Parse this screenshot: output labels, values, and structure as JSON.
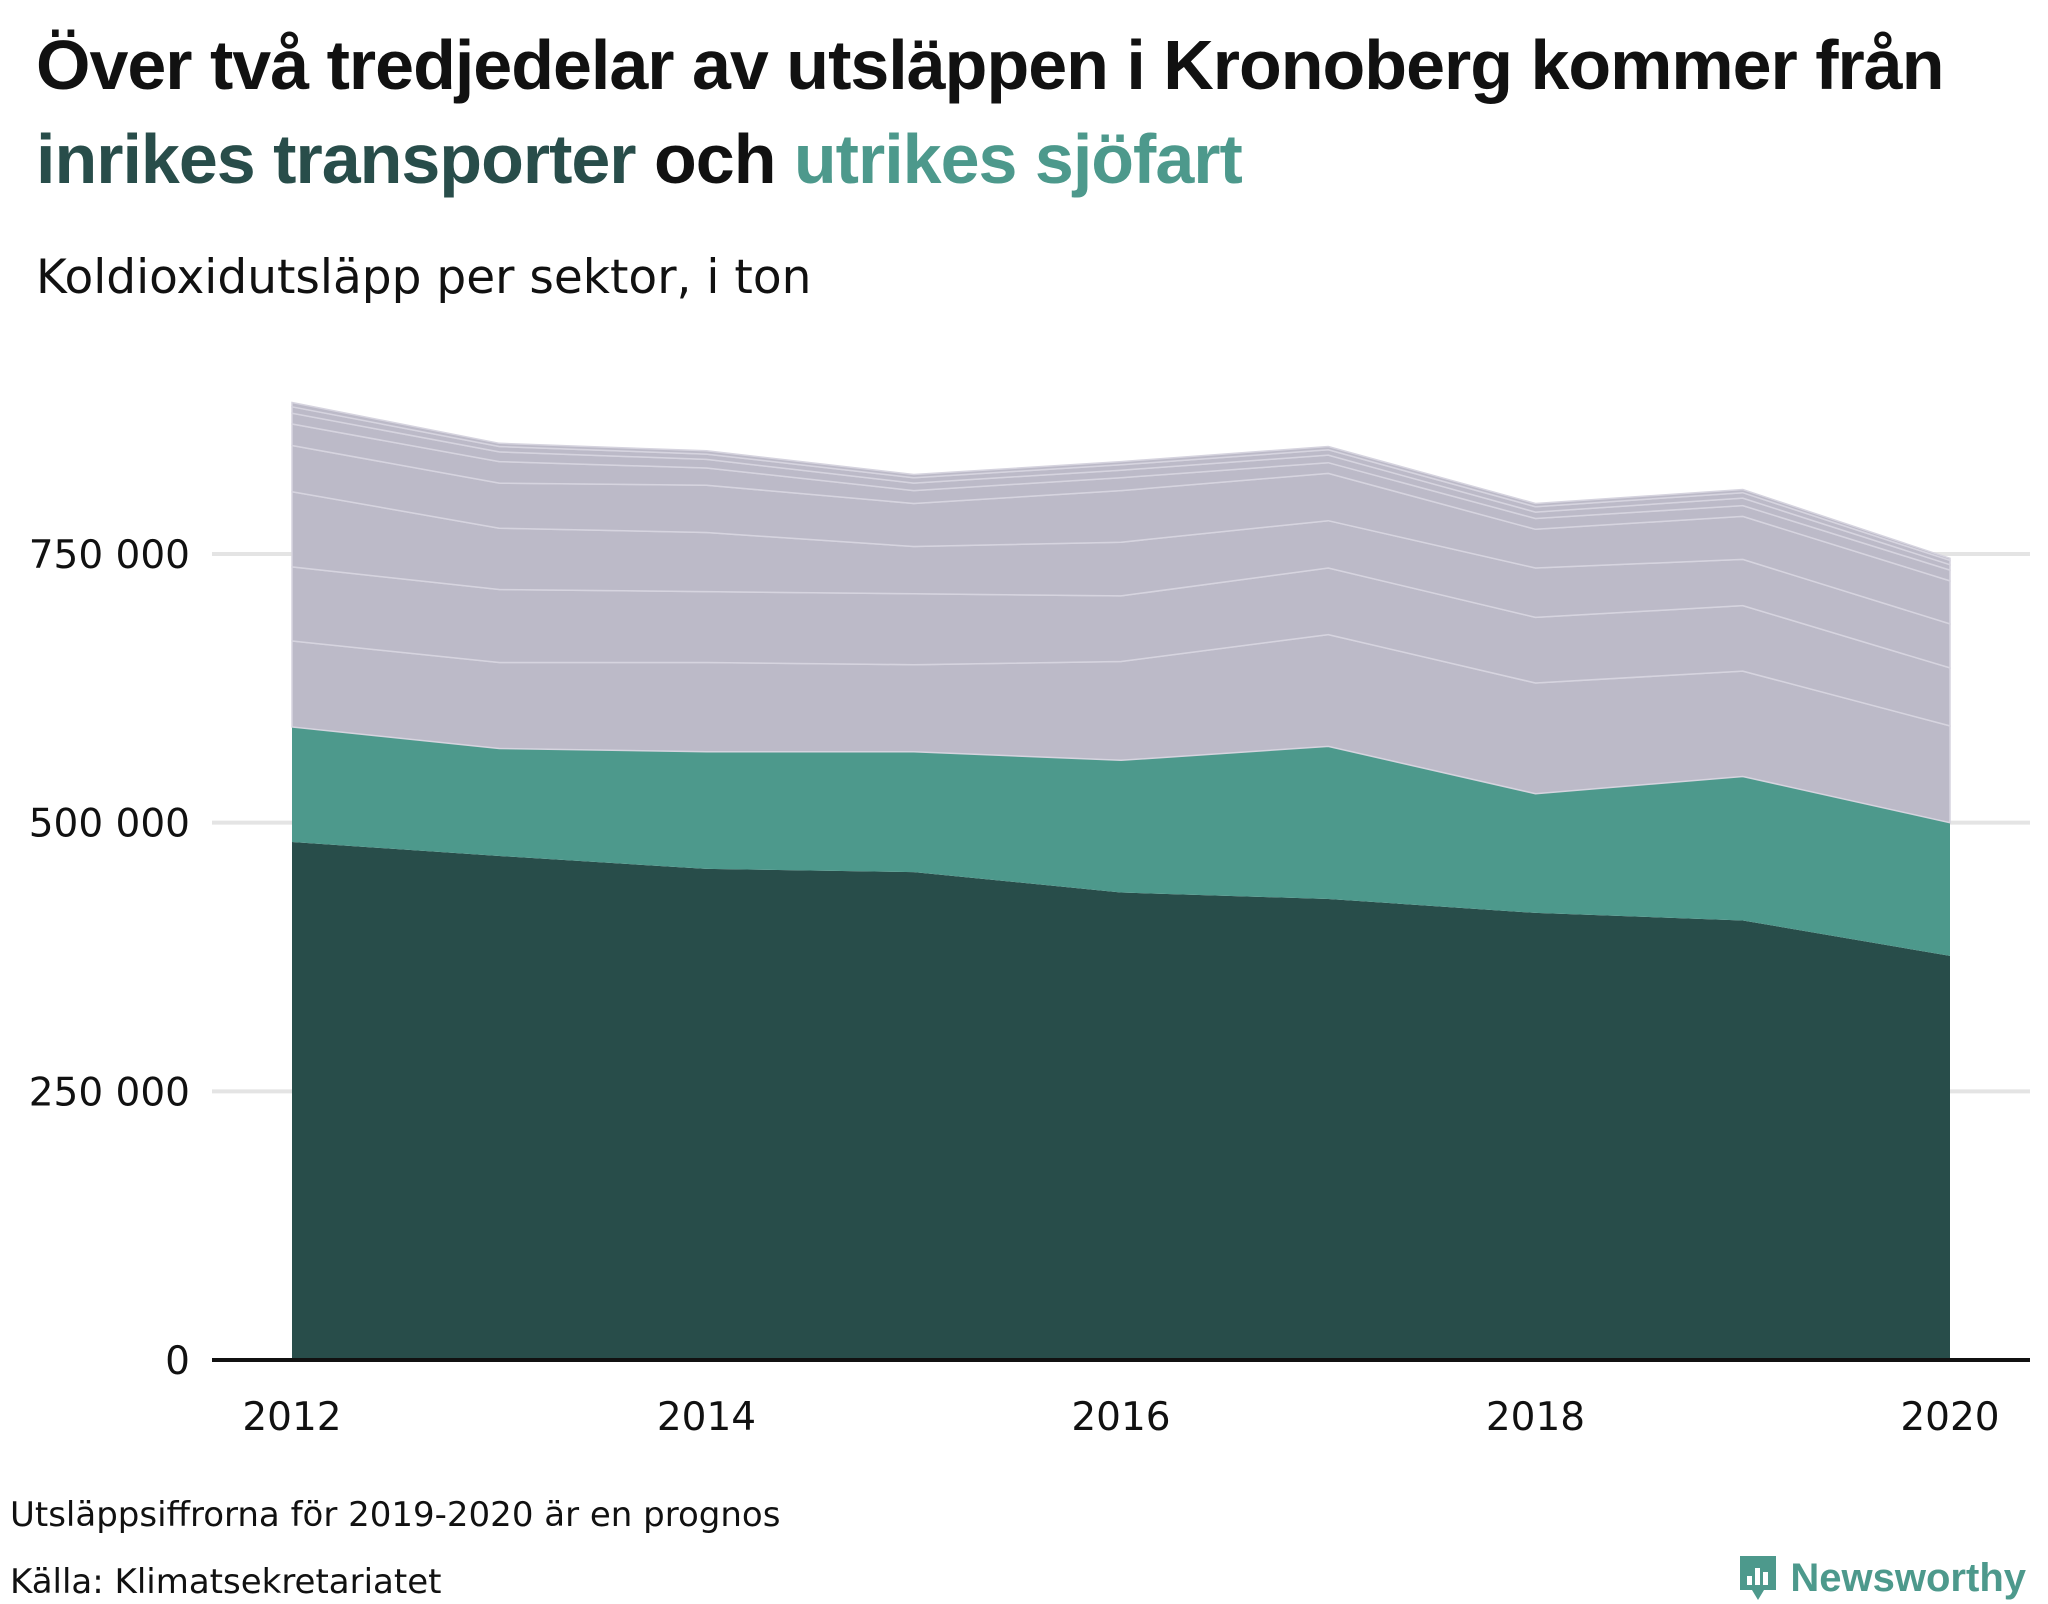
{
  "title": {
    "line1": "Över två tredjedelar av utsläppen i Kronoberg kommer från",
    "highlight1": "inrikes transporter",
    "connector": " och ",
    "highlight2": "utrikes sjöfart"
  },
  "subtitle": "Koldioxidutsläpp per sektor, i ton",
  "notes": {
    "forecast": "Utsläppsiffrorna för 2019-2020 är en prognos",
    "source": "Källa: Klimatsekretariatet"
  },
  "brand": {
    "name": "Newsworthy",
    "icon": "newsworthy-logo-icon"
  },
  "colors": {
    "inrikes_transporter": "#284d4a",
    "utrikes_sjofart": "#4d998c",
    "other": "#bcbac8",
    "gridline": "#e4e4e4",
    "axis": "#111111"
  },
  "chart_data": {
    "type": "area",
    "stacked": true,
    "x": [
      2012,
      2013,
      2014,
      2015,
      2016,
      2017,
      2018,
      2019,
      2020
    ],
    "x_ticks": [
      2012,
      2014,
      2016,
      2018,
      2020
    ],
    "x_tick_labels": [
      "2012",
      "2014",
      "2016",
      "2018",
      "2020"
    ],
    "y_ticks": [
      0,
      250000,
      500000,
      750000
    ],
    "y_tick_labels": [
      "0",
      "250 000",
      "500 000",
      "750 000"
    ],
    "ylim": [
      0,
      890000
    ],
    "grid": "horizontal",
    "series": [
      {
        "key": "inrikes",
        "name": "inrikes transporter",
        "color": "#284d4a",
        "values": [
          482000,
          469000,
          457000,
          454000,
          435000,
          429000,
          416000,
          409000,
          376000
        ]
      },
      {
        "key": "sjofart",
        "name": "utrikes sjöfart",
        "color": "#4d998c",
        "values": [
          107000,
          100000,
          109000,
          112000,
          123000,
          142000,
          111000,
          134000,
          124000
        ]
      },
      {
        "color": "#bcbac8",
        "values": [
          80000,
          80000,
          83000,
          81000,
          92000,
          104000,
          103000,
          98000,
          90000
        ]
      },
      {
        "color": "#bcbac8",
        "values": [
          69000,
          68000,
          66000,
          66000,
          61000,
          62000,
          61000,
          61000,
          54000
        ]
      },
      {
        "color": "#bcbac8",
        "values": [
          70000,
          57000,
          55000,
          44000,
          50000,
          44000,
          46000,
          43000,
          41000
        ]
      },
      {
        "color": "#bcbac8",
        "values": [
          43000,
          42000,
          44000,
          40000,
          48000,
          44000,
          36000,
          40000,
          40000
        ]
      },
      {
        "color": "#bcbac8",
        "values": [
          20000,
          20000,
          16000,
          12000,
          12000,
          10000,
          10000,
          10000,
          10000
        ]
      },
      {
        "color": "#bcbac8",
        "values": [
          10000,
          9000,
          8000,
          7000,
          7000,
          7000,
          6000,
          7000,
          5000
        ]
      },
      {
        "color": "#bcbac8",
        "values": [
          6000,
          5000,
          5000,
          5000,
          5000,
          5000,
          5000,
          5000,
          4000
        ]
      },
      {
        "color": "#bcbac8",
        "values": [
          4000,
          3000,
          3000,
          3000,
          3000,
          3000,
          3000,
          3000,
          2000
        ]
      }
    ]
  }
}
